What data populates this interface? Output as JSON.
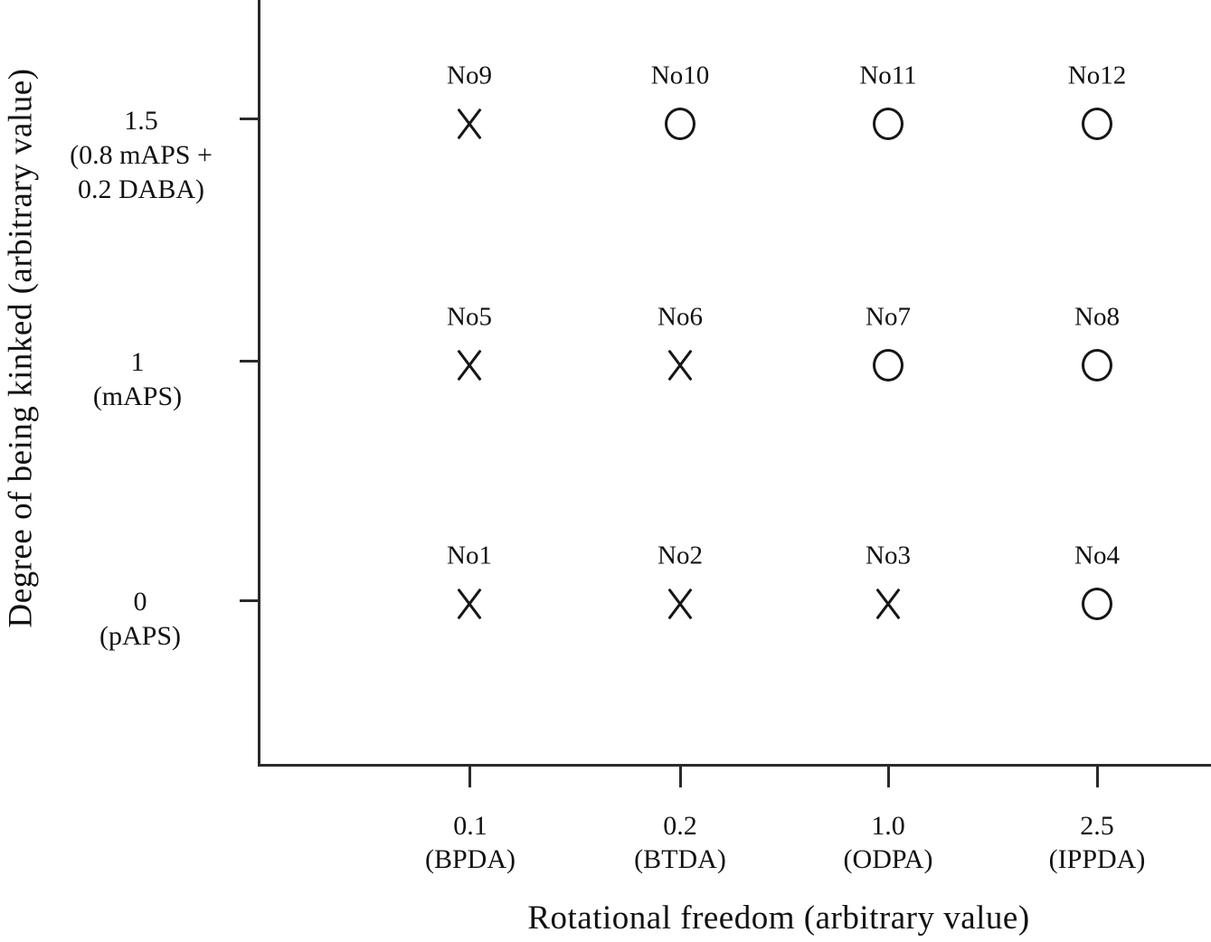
{
  "x_axis": {
    "title": "Rotational freedom (arbitrary value)",
    "ticks": [
      {
        "line1": "0.1",
        "line2": "(BPDA)"
      },
      {
        "line1": "0.2",
        "line2": "(BTDA)"
      },
      {
        "line1": "1.0",
        "line2": "(ODPA)"
      },
      {
        "line1": "2.5",
        "line2": "(IPPDA)"
      }
    ]
  },
  "y_axis": {
    "title": "Degree of being kinked (arbitrary value)",
    "ticks": [
      {
        "line1": "1.5",
        "line2": "(0.8 mAPS +",
        "line3": "0.2 DABA)"
      },
      {
        "line1": "1",
        "line2": "(mAPS)"
      },
      {
        "line1": "0",
        "line2": "(pAPS)"
      }
    ]
  },
  "points": [
    {
      "label": "No1",
      "marker": "X"
    },
    {
      "label": "No2",
      "marker": "X"
    },
    {
      "label": "No3",
      "marker": "X"
    },
    {
      "label": "No4",
      "marker": "O"
    },
    {
      "label": "No5",
      "marker": "X"
    },
    {
      "label": "No6",
      "marker": "X"
    },
    {
      "label": "No7",
      "marker": "O"
    },
    {
      "label": "No8",
      "marker": "O"
    },
    {
      "label": "No9",
      "marker": "X"
    },
    {
      "label": "No10",
      "marker": "O"
    },
    {
      "label": "No11",
      "marker": "O"
    },
    {
      "label": "No12",
      "marker": "O"
    }
  ],
  "chart_data": {
    "type": "scatter",
    "title": "",
    "xlabel": "Rotational freedom (arbitrary value)",
    "ylabel": "Degree of being kinked (arbitrary value)",
    "x_categories": [
      {
        "value": 0.1,
        "label": "(BPDA)"
      },
      {
        "value": 0.2,
        "label": "(BTDA)"
      },
      {
        "value": 1.0,
        "label": "(ODPA)"
      },
      {
        "value": 2.5,
        "label": "(IPPDA)"
      }
    ],
    "y_categories": [
      {
        "value": 0,
        "label": "(pAPS)"
      },
      {
        "value": 1,
        "label": "(mAPS)"
      },
      {
        "value": 1.5,
        "label": "(0.8 mAPS + 0.2 DABA)"
      }
    ],
    "grid": false,
    "legend": null,
    "marker_meaning": {
      "X": "x-cross marker",
      "O": "open circle marker"
    },
    "points": [
      {
        "label": "No1",
        "x": 0.1,
        "y": 0,
        "marker": "X"
      },
      {
        "label": "No2",
        "x": 0.2,
        "y": 0,
        "marker": "X"
      },
      {
        "label": "No3",
        "x": 1.0,
        "y": 0,
        "marker": "X"
      },
      {
        "label": "No4",
        "x": 2.5,
        "y": 0,
        "marker": "O"
      },
      {
        "label": "No5",
        "x": 0.1,
        "y": 1,
        "marker": "X"
      },
      {
        "label": "No6",
        "x": 0.2,
        "y": 1,
        "marker": "X"
      },
      {
        "label": "No7",
        "x": 1.0,
        "y": 1,
        "marker": "O"
      },
      {
        "label": "No8",
        "x": 2.5,
        "y": 1,
        "marker": "O"
      },
      {
        "label": "No9",
        "x": 0.1,
        "y": 1.5,
        "marker": "X"
      },
      {
        "label": "No10",
        "x": 0.2,
        "y": 1.5,
        "marker": "O"
      },
      {
        "label": "No11",
        "x": 1.0,
        "y": 1.5,
        "marker": "O"
      },
      {
        "label": "No12",
        "x": 2.5,
        "y": 1.5,
        "marker": "O"
      }
    ]
  }
}
